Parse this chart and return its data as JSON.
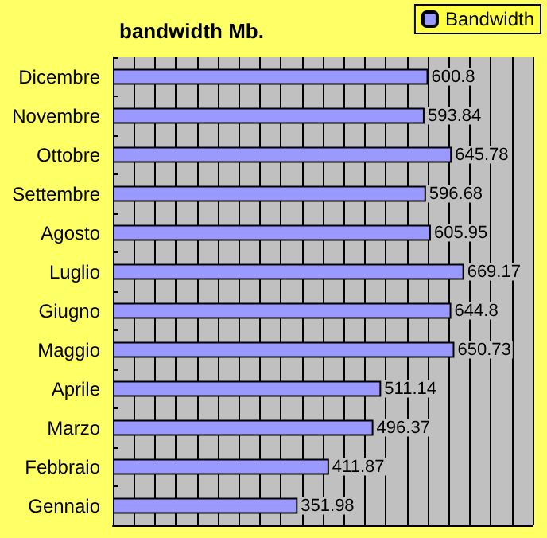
{
  "chart_data": {
    "type": "bar",
    "title": "bandwidth Mb.",
    "orientation": "horizontal",
    "categories": [
      "Dicembre",
      "Novembre",
      "Ottobre",
      "Settembre",
      "Agosto",
      "Luglio",
      "Giugno",
      "Maggio",
      "Aprile",
      "Marzo",
      "Febbraio",
      "Gennaio"
    ],
    "series": [
      {
        "name": "Bandwidth",
        "color": "#9999ff",
        "values": [
          600.8,
          593.84,
          645.78,
          596.68,
          605.95,
          669.17,
          644.8,
          650.73,
          511.14,
          496.37,
          411.87,
          351.98
        ]
      }
    ],
    "xlim": [
      0,
      800
    ],
    "xticks": [
      {
        "value": 0,
        "label": null
      },
      {
        "value": 40,
        "label": null
      },
      {
        "value": 80,
        "label": null
      },
      {
        "value": 120,
        "label": null
      },
      {
        "value": 160,
        "label": null
      },
      {
        "value": 200,
        "label": null
      },
      {
        "value": 240,
        "label": null
      },
      {
        "value": 280,
        "label": null
      },
      {
        "value": 320,
        "label": null
      },
      {
        "value": 360,
        "label": null
      },
      {
        "value": 400,
        "label": null
      },
      {
        "value": 440,
        "label": null
      },
      {
        "value": 480,
        "label": null
      },
      {
        "value": 520,
        "label": null
      },
      {
        "value": 560,
        "label": null
      },
      {
        "value": 600,
        "label": null
      },
      {
        "value": 640,
        "label": null
      },
      {
        "value": 680,
        "label": null
      },
      {
        "value": 720,
        "label": null
      },
      {
        "value": 760,
        "label": null
      },
      {
        "value": 800,
        "label": null
      }
    ],
    "tick_labels": "y",
    "grid": "x",
    "legend": "top right",
    "data_labels": true
  }
}
